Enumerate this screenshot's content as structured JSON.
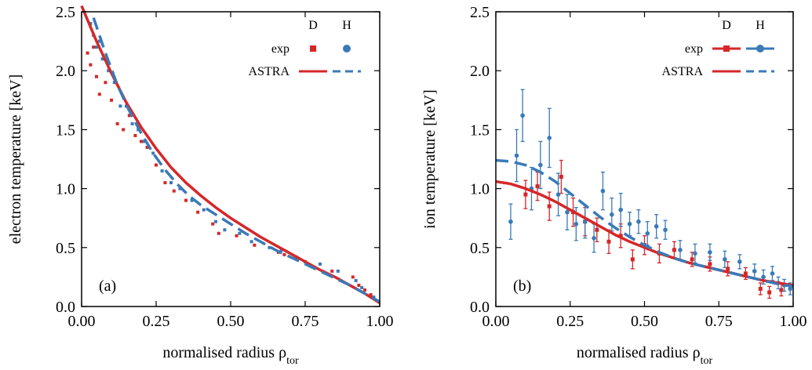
{
  "figure": {
    "panels_caption": [
      "(a)",
      "(b)"
    ]
  },
  "colors": {
    "D": "#d62728",
    "H": "#3a7ab8"
  },
  "chart_data": [
    {
      "type": "scatter",
      "panel_label": "(a)",
      "xlabel": "normalised radius ρ",
      "xlabel_sub": "tor",
      "ylabel": "electron temperature [keV]",
      "xlim": [
        0,
        1
      ],
      "ylim": [
        0,
        2.5
      ],
      "x_ticks": [
        "0.00",
        "0.25",
        "0.50",
        "0.75",
        "1.00"
      ],
      "y_ticks": [
        "0.0",
        "0.5",
        "1.0",
        "1.5",
        "2.0",
        "2.5"
      ],
      "x_tick_values": [
        0,
        0.25,
        0.5,
        0.75,
        1.0
      ],
      "y_tick_values": [
        0,
        0.5,
        1.0,
        1.5,
        2.0,
        2.5
      ],
      "legend": {
        "position": "top-right",
        "column_headers": [
          "D",
          "H"
        ],
        "rows": [
          "exp",
          "ASTRA"
        ]
      },
      "series": [
        {
          "name": "exp D",
          "style": "points",
          "color": "#d62728",
          "x": [
            0.02,
            0.03,
            0.04,
            0.05,
            0.06,
            0.08,
            0.1,
            0.12,
            0.14,
            0.16,
            0.18,
            0.2,
            0.22,
            0.25,
            0.28,
            0.31,
            0.35,
            0.39,
            0.44,
            0.46,
            0.52,
            0.58,
            0.66,
            0.68,
            0.75,
            0.84,
            0.91,
            0.93,
            0.95,
            0.97
          ],
          "y": [
            2.15,
            2.05,
            2.2,
            1.95,
            1.8,
            1.9,
            1.75,
            1.55,
            1.5,
            1.62,
            1.45,
            1.4,
            1.35,
            1.2,
            1.05,
            0.98,
            0.9,
            0.8,
            0.7,
            0.62,
            0.6,
            0.52,
            0.46,
            0.44,
            0.38,
            0.3,
            0.25,
            0.18,
            0.14,
            0.1
          ]
        },
        {
          "name": "exp H",
          "style": "points",
          "color": "#3a7ab8",
          "x": [
            0.03,
            0.04,
            0.05,
            0.06,
            0.07,
            0.09,
            0.11,
            0.13,
            0.15,
            0.17,
            0.19,
            0.21,
            0.24,
            0.27,
            0.3,
            0.33,
            0.37,
            0.41,
            0.45,
            0.48,
            0.53,
            0.57,
            0.63,
            0.67,
            0.72,
            0.8,
            0.86,
            0.92,
            0.94,
            0.98
          ],
          "y": [
            2.4,
            2.3,
            2.2,
            2.25,
            2.1,
            2.0,
            1.9,
            1.7,
            1.7,
            1.55,
            1.5,
            1.4,
            1.3,
            1.15,
            1.05,
            1.0,
            0.9,
            0.82,
            0.72,
            0.65,
            0.62,
            0.55,
            0.5,
            0.48,
            0.42,
            0.36,
            0.3,
            0.22,
            0.16,
            0.08
          ]
        },
        {
          "name": "ASTRA D",
          "style": "solid",
          "color": "#d62728",
          "x": [
            0.0,
            0.05,
            0.1,
            0.15,
            0.2,
            0.25,
            0.3,
            0.35,
            0.4,
            0.45,
            0.5,
            0.55,
            0.6,
            0.65,
            0.7,
            0.75,
            0.8,
            0.85,
            0.9,
            0.95,
            1.0
          ],
          "y": [
            2.55,
            2.25,
            1.98,
            1.73,
            1.52,
            1.34,
            1.18,
            1.05,
            0.94,
            0.84,
            0.75,
            0.67,
            0.59,
            0.52,
            0.45,
            0.38,
            0.31,
            0.25,
            0.18,
            0.11,
            0.03
          ]
        },
        {
          "name": "ASTRA H",
          "style": "dashed",
          "color": "#3a7ab8",
          "x": [
            0.04,
            0.08,
            0.12,
            0.16,
            0.2,
            0.24,
            0.28,
            0.32,
            0.36,
            0.4,
            0.45,
            0.5,
            0.55,
            0.6,
            0.65,
            0.7,
            0.75,
            0.8,
            0.85,
            0.9,
            0.95,
            1.0
          ],
          "y": [
            2.45,
            2.15,
            1.88,
            1.66,
            1.47,
            1.3,
            1.16,
            1.04,
            0.94,
            0.86,
            0.78,
            0.7,
            0.62,
            0.55,
            0.48,
            0.42,
            0.36,
            0.3,
            0.24,
            0.18,
            0.11,
            0.04
          ]
        }
      ]
    },
    {
      "type": "scatter",
      "panel_label": "(b)",
      "xlabel": "normalised radius ρ",
      "xlabel_sub": "tor",
      "ylabel": "ion temperature [keV]",
      "xlim": [
        0,
        1
      ],
      "ylim": [
        0,
        2.5
      ],
      "x_ticks": [
        "0.00",
        "0.25",
        "0.50",
        "0.75",
        "1.00"
      ],
      "y_ticks": [
        "0.0",
        "0.5",
        "1.0",
        "1.5",
        "2.0",
        "2.5"
      ],
      "x_tick_values": [
        0,
        0.25,
        0.5,
        0.75,
        1.0
      ],
      "y_tick_values": [
        0,
        0.5,
        1.0,
        1.5,
        2.0,
        2.5
      ],
      "legend": {
        "position": "top-right",
        "column_headers": [
          "D",
          "H"
        ],
        "rows": [
          "exp",
          "ASTRA"
        ]
      },
      "series": [
        {
          "name": "exp D",
          "style": "errorbars",
          "color": "#d62728",
          "x": [
            0.1,
            0.14,
            0.18,
            0.22,
            0.26,
            0.3,
            0.34,
            0.38,
            0.42,
            0.46,
            0.5,
            0.55,
            0.6,
            0.66,
            0.72,
            0.78,
            0.84,
            0.89,
            0.92,
            0.96
          ],
          "y": [
            0.95,
            1.02,
            0.85,
            1.1,
            0.8,
            0.72,
            0.65,
            0.55,
            0.6,
            0.4,
            0.52,
            0.45,
            0.48,
            0.4,
            0.36,
            0.32,
            0.28,
            0.15,
            0.12,
            0.14
          ],
          "err": [
            0.12,
            0.12,
            0.12,
            0.14,
            0.12,
            0.12,
            0.1,
            0.1,
            0.1,
            0.08,
            0.08,
            0.08,
            0.07,
            0.06,
            0.06,
            0.06,
            0.05,
            0.05,
            0.05,
            0.05
          ]
        },
        {
          "name": "exp H",
          "style": "errorbars",
          "color": "#3a7ab8",
          "x": [
            0.05,
            0.07,
            0.09,
            0.12,
            0.15,
            0.18,
            0.21,
            0.24,
            0.27,
            0.3,
            0.33,
            0.36,
            0.39,
            0.42,
            0.45,
            0.48,
            0.51,
            0.54,
            0.57,
            0.62,
            0.67,
            0.72,
            0.77,
            0.82,
            0.87,
            0.9,
            0.93,
            0.95,
            0.97,
            0.99
          ],
          "y": [
            0.72,
            1.28,
            1.62,
            1.0,
            1.2,
            1.43,
            0.95,
            0.8,
            0.7,
            0.72,
            0.58,
            0.98,
            0.78,
            0.82,
            0.7,
            0.72,
            0.62,
            0.68,
            0.65,
            0.48,
            0.45,
            0.46,
            0.4,
            0.38,
            0.3,
            0.25,
            0.28,
            0.2,
            0.18,
            0.15
          ],
          "err": [
            0.15,
            0.22,
            0.22,
            0.18,
            0.2,
            0.25,
            0.18,
            0.15,
            0.14,
            0.14,
            0.12,
            0.16,
            0.14,
            0.14,
            0.1,
            0.1,
            0.1,
            0.1,
            0.08,
            0.08,
            0.08,
            0.07,
            0.07,
            0.06,
            0.06,
            0.06,
            0.06,
            0.05,
            0.05,
            0.05
          ]
        },
        {
          "name": "ASTRA D",
          "style": "solid",
          "color": "#d62728",
          "x": [
            0.0,
            0.05,
            0.1,
            0.15,
            0.2,
            0.25,
            0.3,
            0.35,
            0.4,
            0.45,
            0.5,
            0.55,
            0.6,
            0.65,
            0.7,
            0.75,
            0.8,
            0.85,
            0.9,
            0.95,
            1.0
          ],
          "y": [
            1.06,
            1.04,
            1.0,
            0.95,
            0.89,
            0.82,
            0.75,
            0.68,
            0.61,
            0.55,
            0.5,
            0.45,
            0.41,
            0.37,
            0.34,
            0.31,
            0.28,
            0.25,
            0.22,
            0.2,
            0.18
          ]
        },
        {
          "name": "ASTRA H",
          "style": "dashed",
          "color": "#3a7ab8",
          "x": [
            0.0,
            0.05,
            0.1,
            0.15,
            0.2,
            0.25,
            0.3,
            0.35,
            0.4,
            0.45,
            0.5,
            0.55,
            0.6,
            0.65,
            0.7,
            0.75,
            0.8,
            0.85,
            0.9,
            0.95,
            1.0
          ],
          "y": [
            1.24,
            1.23,
            1.2,
            1.14,
            1.06,
            0.96,
            0.86,
            0.76,
            0.67,
            0.59,
            0.52,
            0.46,
            0.41,
            0.37,
            0.34,
            0.31,
            0.28,
            0.25,
            0.22,
            0.19,
            0.17
          ]
        }
      ]
    }
  ]
}
